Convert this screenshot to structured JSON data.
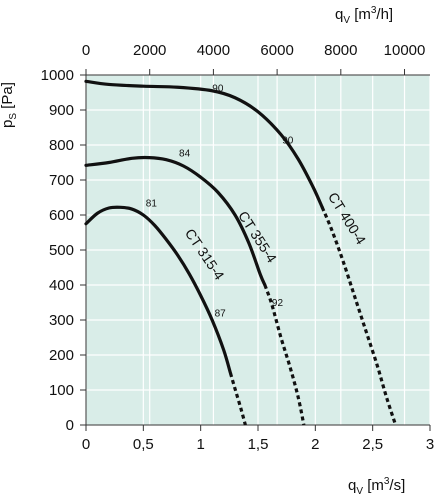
{
  "chart_data": {
    "type": "line",
    "title": "",
    "ylabel": {
      "main": "p",
      "sub": "S",
      "unit": "[Pa]"
    },
    "xlabel_bottom": {
      "main": "q",
      "sub": "V",
      "unit_pre": "[m",
      "unit_sup": "3",
      "unit_post": "/s]"
    },
    "xlabel_top": {
      "main": "q",
      "sub": "V",
      "unit_pre": "[m",
      "unit_sup": "3",
      "unit_post": "/h]"
    },
    "xlim": [
      0,
      3
    ],
    "ylim": [
      0,
      1000
    ],
    "x_ticks": [
      {
        "value": 0,
        "label": "0"
      },
      {
        "value": 0.5,
        "label": "0,5"
      },
      {
        "value": 1,
        "label": "1"
      },
      {
        "value": 1.5,
        "label": "1,5"
      },
      {
        "value": 2,
        "label": "2"
      },
      {
        "value": 2.5,
        "label": "2,5"
      },
      {
        "value": 3,
        "label": "3"
      }
    ],
    "x_top_ticks": [
      {
        "value": 0,
        "label": "0"
      },
      {
        "value": 2000,
        "label": "2000"
      },
      {
        "value": 4000,
        "label": "4000"
      },
      {
        "value": 6000,
        "label": "6000"
      },
      {
        "value": 8000,
        "label": "8000"
      },
      {
        "value": 10000,
        "label": "10000"
      }
    ],
    "y_ticks": [
      {
        "value": 0,
        "label": "0"
      },
      {
        "value": 100,
        "label": "100"
      },
      {
        "value": 200,
        "label": "200"
      },
      {
        "value": 300,
        "label": "300"
      },
      {
        "value": 400,
        "label": "400"
      },
      {
        "value": 500,
        "label": "500"
      },
      {
        "value": 600,
        "label": "600"
      },
      {
        "value": 700,
        "label": "700"
      },
      {
        "value": 800,
        "label": "800"
      },
      {
        "value": 900,
        "label": "900"
      },
      {
        "value": 1000,
        "label": "1000"
      }
    ],
    "grid": true,
    "colors": {
      "background": "#d9ede8",
      "grid": "#ffffff",
      "line": "#111111"
    },
    "series": [
      {
        "name": "CT 315-4",
        "solid": [
          [
            0,
            575
          ],
          [
            0.1,
            605
          ],
          [
            0.2,
            620
          ],
          [
            0.3,
            622
          ],
          [
            0.4,
            617
          ],
          [
            0.5,
            600
          ],
          [
            0.6,
            570
          ],
          [
            0.7,
            530
          ],
          [
            0.8,
            485
          ],
          [
            0.9,
            432
          ],
          [
            1.0,
            370
          ],
          [
            1.1,
            300
          ],
          [
            1.2,
            215
          ],
          [
            1.26,
            148
          ]
        ],
        "dashed": [
          [
            1.26,
            148
          ],
          [
            1.3,
            103
          ],
          [
            1.35,
            48
          ],
          [
            1.39,
            0
          ]
        ],
        "label_pos": [
          1.0,
          480
        ],
        "label_angle": 56
      },
      {
        "name": "CT 355-4",
        "solid": [
          [
            0,
            742
          ],
          [
            0.2,
            750
          ],
          [
            0.4,
            762
          ],
          [
            0.55,
            764
          ],
          [
            0.7,
            758
          ],
          [
            0.85,
            740
          ],
          [
            1.0,
            708
          ],
          [
            1.15,
            665
          ],
          [
            1.3,
            600
          ],
          [
            1.42,
            520
          ],
          [
            1.52,
            430
          ],
          [
            1.56,
            400
          ]
        ],
        "dashed": [
          [
            1.56,
            400
          ],
          [
            1.62,
            345
          ],
          [
            1.7,
            250
          ],
          [
            1.78,
            165
          ],
          [
            1.85,
            80
          ],
          [
            1.9,
            0
          ]
        ],
        "label_pos": [
          1.46,
          530
        ],
        "label_angle": 57
      },
      {
        "name": "CT 400-4",
        "solid": [
          [
            0,
            982
          ],
          [
            0.2,
            973
          ],
          [
            0.5,
            968
          ],
          [
            0.8,
            965
          ],
          [
            1.1,
            955
          ],
          [
            1.3,
            935
          ],
          [
            1.5,
            895
          ],
          [
            1.7,
            830
          ],
          [
            1.85,
            760
          ],
          [
            1.98,
            680
          ],
          [
            2.06,
            622
          ]
        ],
        "dashed": [
          [
            2.06,
            622
          ],
          [
            2.14,
            560
          ],
          [
            2.24,
            470
          ],
          [
            2.34,
            370
          ],
          [
            2.44,
            270
          ],
          [
            2.54,
            170
          ],
          [
            2.62,
            80
          ],
          [
            2.7,
            0
          ]
        ],
        "label_pos": [
          2.24,
          583
        ],
        "label_angle": 58
      }
    ],
    "annotations": [
      {
        "text": "81",
        "x": 0.57,
        "y": 625
      },
      {
        "text": "87",
        "x": 1.17,
        "y": 310
      },
      {
        "text": "84",
        "x": 0.86,
        "y": 767
      },
      {
        "text": "92",
        "x": 1.67,
        "y": 340
      },
      {
        "text": "90",
        "x": 1.15,
        "y": 953
      },
      {
        "text": "90",
        "x": 1.76,
        "y": 805
      }
    ]
  }
}
